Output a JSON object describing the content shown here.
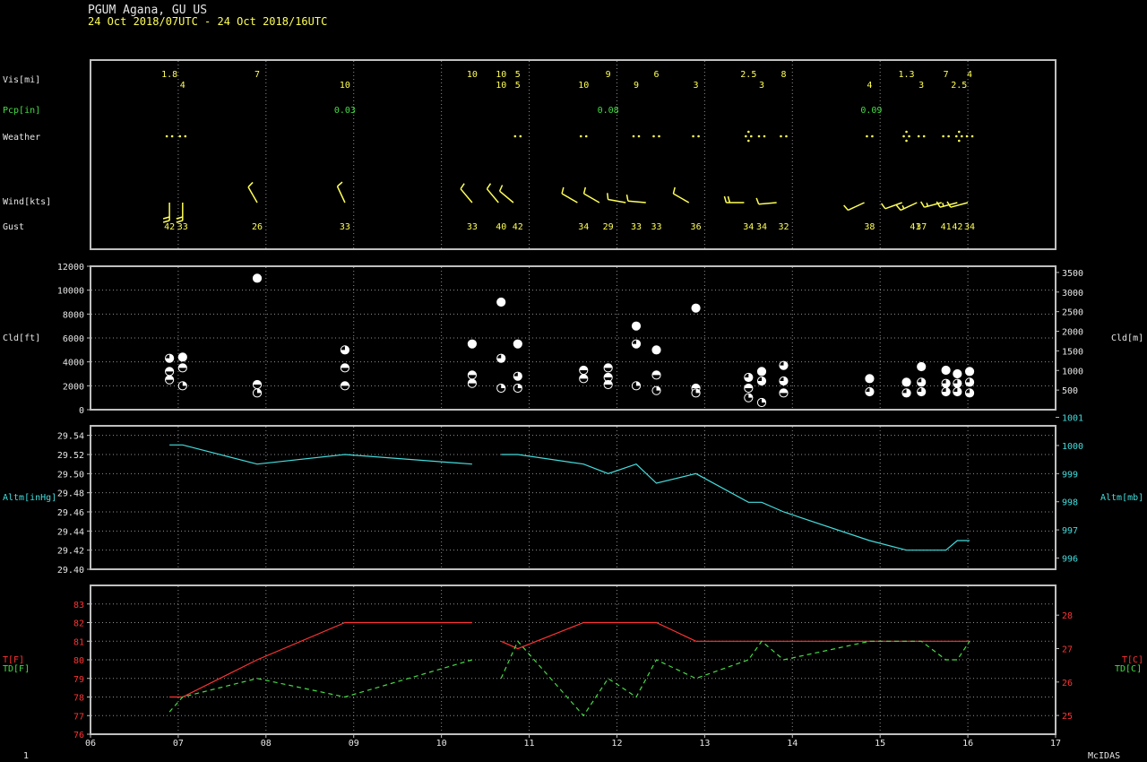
{
  "header": {
    "station_line": "PGUM  Agana, GU US",
    "time_range": "24 Oct 2018/07UTC - 24 Oct 2018/16UTC"
  },
  "footer": {
    "left": "1",
    "right": "McIDAS"
  },
  "colors": {
    "panel_border": "#c0c0c0",
    "grid": "#909090",
    "text_white": "#e6e6e6",
    "yellow": "#ffff55",
    "green": "#44dd44",
    "cyan": "#44dddd",
    "red": "#ff3333"
  },
  "chart_data": [
    {
      "id": "obs_panel",
      "type": "table",
      "rows": {
        "vis": {
          "label": "Vis[mi]"
        },
        "pcp": {
          "label": "Pcp[in]"
        },
        "weather": {
          "label": "Weather"
        },
        "wind": {
          "label": "Wind[kts]"
        },
        "gust": {
          "label": "Gust"
        }
      },
      "vis_top": [
        {
          "t": 6.9,
          "v": "1.8"
        },
        {
          "t": 7.9,
          "v": "7"
        },
        {
          "t": 10.35,
          "v": "10"
        },
        {
          "t": 10.68,
          "v": "10"
        },
        {
          "t": 10.87,
          "v": "5"
        },
        {
          "t": 11.9,
          "v": "9"
        },
        {
          "t": 12.45,
          "v": "6"
        },
        {
          "t": 13.5,
          "v": "2.5"
        },
        {
          "t": 13.9,
          "v": "8"
        },
        {
          "t": 15.3,
          "v": "1.3"
        },
        {
          "t": 15.75,
          "v": "7"
        },
        {
          "t": 16.02,
          "v": "4"
        }
      ],
      "vis_bottom": [
        {
          "t": 7.05,
          "v": "4"
        },
        {
          "t": 8.9,
          "v": "10"
        },
        {
          "t": 10.68,
          "v": "10"
        },
        {
          "t": 10.87,
          "v": "5"
        },
        {
          "t": 11.62,
          "v": "10"
        },
        {
          "t": 12.22,
          "v": "9"
        },
        {
          "t": 12.9,
          "v": "3"
        },
        {
          "t": 13.65,
          "v": "3"
        },
        {
          "t": 14.88,
          "v": "4"
        },
        {
          "t": 15.47,
          "v": "3"
        },
        {
          "t": 15.9,
          "v": "2.5"
        }
      ],
      "precip": [
        {
          "t": 8.9,
          "v": "0.03"
        },
        {
          "t": 11.9,
          "v": "0.08"
        },
        {
          "t": 14.9,
          "v": "0.09"
        }
      ],
      "weather": [
        {
          "t": 6.9,
          "s": "rain"
        },
        {
          "t": 7.05,
          "s": "rain"
        },
        {
          "t": 10.87,
          "s": "rain"
        },
        {
          "t": 11.62,
          "s": "rain"
        },
        {
          "t": 12.22,
          "s": "rain"
        },
        {
          "t": 12.45,
          "s": "rain"
        },
        {
          "t": 12.9,
          "s": "rain"
        },
        {
          "t": 13.5,
          "s": "showers"
        },
        {
          "t": 13.65,
          "s": "rain"
        },
        {
          "t": 13.9,
          "s": "rain"
        },
        {
          "t": 14.88,
          "s": "rain"
        },
        {
          "t": 15.3,
          "s": "showers"
        },
        {
          "t": 15.47,
          "s": "rain"
        },
        {
          "t": 15.75,
          "s": "rain"
        },
        {
          "t": 15.9,
          "s": "showers"
        },
        {
          "t": 16.02,
          "s": "rain"
        }
      ],
      "wind": [
        {
          "t": 6.9,
          "dir": 180,
          "spd": 20
        },
        {
          "t": 7.05,
          "dir": 180,
          "spd": 20
        },
        {
          "t": 7.9,
          "dir": 330,
          "spd": 10
        },
        {
          "t": 8.9,
          "dir": 335,
          "spd": 10
        },
        {
          "t": 10.35,
          "dir": 320,
          "spd": 10
        },
        {
          "t": 10.65,
          "dir": 320,
          "spd": 10
        },
        {
          "t": 10.82,
          "dir": 310,
          "spd": 10
        },
        {
          "t": 11.55,
          "dir": 300,
          "spd": 10
        },
        {
          "t": 11.8,
          "dir": 300,
          "spd": 10
        },
        {
          "t": 12.1,
          "dir": 280,
          "spd": 10
        },
        {
          "t": 12.33,
          "dir": 275,
          "spd": 10
        },
        {
          "t": 12.82,
          "dir": 300,
          "spd": 10
        },
        {
          "t": 13.45,
          "dir": 270,
          "spd": 20
        },
        {
          "t": 13.82,
          "dir": 265,
          "spd": 10
        },
        {
          "t": 14.82,
          "dir": 245,
          "spd": 10
        },
        {
          "t": 15.25,
          "dir": 250,
          "spd": 10
        },
        {
          "t": 15.42,
          "dir": 245,
          "spd": 15
        },
        {
          "t": 15.7,
          "dir": 255,
          "spd": 15
        },
        {
          "t": 15.88,
          "dir": 255,
          "spd": 15
        },
        {
          "t": 16.0,
          "dir": 255,
          "spd": 10
        }
      ],
      "gust": [
        {
          "t": 6.9,
          "v": "42"
        },
        {
          "t": 7.05,
          "v": "33"
        },
        {
          "t": 7.9,
          "v": "26"
        },
        {
          "t": 8.9,
          "v": "33"
        },
        {
          "t": 10.35,
          "v": "33"
        },
        {
          "t": 10.68,
          "v": "40"
        },
        {
          "t": 10.87,
          "v": "42"
        },
        {
          "t": 11.62,
          "v": "34"
        },
        {
          "t": 11.9,
          "v": "29"
        },
        {
          "t": 12.22,
          "v": "33"
        },
        {
          "t": 12.45,
          "v": "33"
        },
        {
          "t": 12.9,
          "v": "36"
        },
        {
          "t": 13.5,
          "v": "34"
        },
        {
          "t": 13.65,
          "v": "34"
        },
        {
          "t": 13.9,
          "v": "32"
        },
        {
          "t": 14.88,
          "v": "38"
        },
        {
          "t": 15.4,
          "v": "41"
        },
        {
          "t": 15.47,
          "v": "37"
        },
        {
          "t": 15.75,
          "v": "41"
        },
        {
          "t": 15.88,
          "v": "42"
        },
        {
          "t": 16.02,
          "v": "34"
        }
      ]
    },
    {
      "id": "cloud",
      "type": "scatter",
      "ylabel_left": "Cld[ft]",
      "ylabel_right": "Cld[m]",
      "ylim": [
        0,
        12000
      ],
      "yticks": [
        0,
        2000,
        4000,
        6000,
        8000,
        10000,
        12000
      ],
      "ylim_right": [
        0,
        3658
      ],
      "yticks_right": [
        500,
        1000,
        1500,
        2000,
        2500,
        3000,
        3500
      ],
      "points": [
        {
          "t": 6.9,
          "ft": 4300,
          "cover": "bkn"
        },
        {
          "t": 6.9,
          "ft": 3200,
          "cover": "sct"
        },
        {
          "t": 6.9,
          "ft": 2500,
          "cover": "sct"
        },
        {
          "t": 7.05,
          "ft": 4400,
          "cover": "ovc"
        },
        {
          "t": 7.05,
          "ft": 3500,
          "cover": "sct"
        },
        {
          "t": 7.05,
          "ft": 2000,
          "cover": "few"
        },
        {
          "t": 7.9,
          "ft": 11000,
          "cover": "ovc"
        },
        {
          "t": 7.9,
          "ft": 2100,
          "cover": "sct"
        },
        {
          "t": 7.9,
          "ft": 1400,
          "cover": "few"
        },
        {
          "t": 8.9,
          "ft": 5000,
          "cover": "bkn"
        },
        {
          "t": 8.9,
          "ft": 3500,
          "cover": "sct"
        },
        {
          "t": 8.9,
          "ft": 2000,
          "cover": "sct"
        },
        {
          "t": 10.35,
          "ft": 5500,
          "cover": "ovc"
        },
        {
          "t": 10.35,
          "ft": 2900,
          "cover": "sct"
        },
        {
          "t": 10.35,
          "ft": 2200,
          "cover": "sct"
        },
        {
          "t": 10.68,
          "ft": 9000,
          "cover": "ovc"
        },
        {
          "t": 10.68,
          "ft": 4300,
          "cover": "bkn"
        },
        {
          "t": 10.68,
          "ft": 1800,
          "cover": "few"
        },
        {
          "t": 10.87,
          "ft": 5500,
          "cover": "ovc"
        },
        {
          "t": 10.87,
          "ft": 2800,
          "cover": "bkn"
        },
        {
          "t": 10.87,
          "ft": 1800,
          "cover": "few"
        },
        {
          "t": 11.62,
          "ft": 3300,
          "cover": "sct"
        },
        {
          "t": 11.62,
          "ft": 2600,
          "cover": "sct"
        },
        {
          "t": 11.9,
          "ft": 3500,
          "cover": "sct"
        },
        {
          "t": 11.9,
          "ft": 2700,
          "cover": "sct"
        },
        {
          "t": 11.9,
          "ft": 2100,
          "cover": "sct"
        },
        {
          "t": 12.22,
          "ft": 7000,
          "cover": "ovc"
        },
        {
          "t": 12.22,
          "ft": 5500,
          "cover": "bkn"
        },
        {
          "t": 12.22,
          "ft": 2000,
          "cover": "few"
        },
        {
          "t": 12.45,
          "ft": 5000,
          "cover": "ovc"
        },
        {
          "t": 12.45,
          "ft": 2900,
          "cover": "sct"
        },
        {
          "t": 12.45,
          "ft": 1600,
          "cover": "few"
        },
        {
          "t": 12.9,
          "ft": 8500,
          "cover": "ovc"
        },
        {
          "t": 12.9,
          "ft": 1800,
          "cover": "sct"
        },
        {
          "t": 12.9,
          "ft": 1400,
          "cover": "few"
        },
        {
          "t": 13.5,
          "ft": 2700,
          "cover": "bkn"
        },
        {
          "t": 13.5,
          "ft": 1800,
          "cover": "sct"
        },
        {
          "t": 13.5,
          "ft": 1000,
          "cover": "few"
        },
        {
          "t": 13.65,
          "ft": 3200,
          "cover": "ovc"
        },
        {
          "t": 13.65,
          "ft": 2400,
          "cover": "bkn"
        },
        {
          "t": 13.65,
          "ft": 600,
          "cover": "few"
        },
        {
          "t": 13.9,
          "ft": 3700,
          "cover": "bkn"
        },
        {
          "t": 13.9,
          "ft": 2400,
          "cover": "bkn"
        },
        {
          "t": 13.9,
          "ft": 1400,
          "cover": "sct"
        },
        {
          "t": 14.88,
          "ft": 2600,
          "cover": "ovc"
        },
        {
          "t": 14.88,
          "ft": 1500,
          "cover": "bkn"
        },
        {
          "t": 15.3,
          "ft": 2300,
          "cover": "ovc"
        },
        {
          "t": 15.3,
          "ft": 1400,
          "cover": "bkn"
        },
        {
          "t": 15.47,
          "ft": 3600,
          "cover": "ovc"
        },
        {
          "t": 15.47,
          "ft": 2300,
          "cover": "bkn"
        },
        {
          "t": 15.47,
          "ft": 1500,
          "cover": "bkn"
        },
        {
          "t": 15.75,
          "ft": 3300,
          "cover": "ovc"
        },
        {
          "t": 15.75,
          "ft": 2200,
          "cover": "bkn"
        },
        {
          "t": 15.75,
          "ft": 1500,
          "cover": "bkn"
        },
        {
          "t": 15.88,
          "ft": 3000,
          "cover": "ovc"
        },
        {
          "t": 15.88,
          "ft": 2200,
          "cover": "bkn"
        },
        {
          "t": 15.88,
          "ft": 1500,
          "cover": "bkn"
        },
        {
          "t": 16.02,
          "ft": 3200,
          "cover": "ovc"
        },
        {
          "t": 16.02,
          "ft": 2300,
          "cover": "bkn"
        },
        {
          "t": 16.02,
          "ft": 1400,
          "cover": "bkn"
        }
      ]
    },
    {
      "id": "altimeter",
      "type": "line",
      "ylabel_left": "Altm[inHg]",
      "ylabel_right": "Altm[mb]",
      "ylim": [
        29.4,
        29.55
      ],
      "yticks": [
        29.4,
        29.42,
        29.44,
        29.46,
        29.48,
        29.5,
        29.52,
        29.54
      ],
      "ylim_right": [
        995.6,
        1000.7
      ],
      "yticks_right": [
        996,
        997,
        998,
        999,
        1000,
        1001
      ],
      "series": [
        {
          "segments": [
            [
              [
                6.9,
                29.53
              ],
              [
                7.05,
                29.53
              ],
              [
                7.9,
                29.51
              ],
              [
                8.9,
                29.52
              ],
              [
                10.35,
                29.51
              ]
            ],
            [
              [
                10.68,
                29.52
              ],
              [
                10.87,
                29.52
              ],
              [
                11.62,
                29.51
              ],
              [
                11.9,
                29.5
              ],
              [
                12.22,
                29.51
              ],
              [
                12.45,
                29.49
              ],
              [
                12.9,
                29.5
              ],
              [
                13.5,
                29.47
              ],
              [
                13.65,
                29.47
              ],
              [
                13.9,
                29.46
              ],
              [
                14.88,
                29.43
              ],
              [
                15.3,
                29.42
              ],
              [
                15.75,
                29.42
              ],
              [
                15.88,
                29.43
              ],
              [
                16.02,
                29.43
              ]
            ]
          ]
        }
      ]
    },
    {
      "id": "temperature",
      "type": "line",
      "ylabel_left_lines": [
        "T[F]",
        "TD[F]"
      ],
      "ylabel_right_lines": [
        "T[C]",
        "TD[C]"
      ],
      "ylim": [
        76,
        84
      ],
      "yticks": [
        76,
        77,
        78,
        79,
        80,
        81,
        82,
        83
      ],
      "ylim_right": [
        24.44,
        28.89
      ],
      "yticks_right": [
        25,
        26,
        27,
        28
      ],
      "xlim": [
        6,
        17
      ],
      "xticks": [
        "06",
        "07",
        "08",
        "09",
        "10",
        "11",
        "12",
        "13",
        "14",
        "15",
        "16",
        "17"
      ],
      "series": [
        {
          "name": "T[F]",
          "color": "#ff3333",
          "dash": false,
          "segments": [
            [
              [
                6.9,
                78
              ],
              [
                7.05,
                78
              ],
              [
                7.9,
                80
              ],
              [
                8.9,
                82
              ],
              [
                10.35,
                82
              ]
            ],
            [
              [
                10.68,
                81
              ],
              [
                10.87,
                80.6
              ],
              [
                11.62,
                82
              ],
              [
                11.9,
                82
              ],
              [
                12.45,
                82
              ],
              [
                12.9,
                81
              ],
              [
                13.5,
                81
              ],
              [
                14.88,
                81
              ],
              [
                15.3,
                81
              ],
              [
                16.02,
                81
              ]
            ]
          ]
        },
        {
          "name": "TD[F]",
          "color": "#44dd44",
          "dash": true,
          "segments": [
            [
              [
                6.9,
                77.2
              ],
              [
                7.05,
                78
              ],
              [
                7.9,
                79
              ],
              [
                8.9,
                78
              ],
              [
                10.35,
                80
              ]
            ],
            [
              [
                10.68,
                79
              ],
              [
                10.87,
                81
              ],
              [
                11.62,
                77
              ],
              [
                11.9,
                79
              ],
              [
                12.22,
                78
              ],
              [
                12.45,
                80
              ],
              [
                12.9,
                79
              ],
              [
                13.5,
                80
              ],
              [
                13.65,
                81
              ],
              [
                13.9,
                80
              ],
              [
                14.88,
                81
              ],
              [
                15.47,
                81
              ],
              [
                15.75,
                80
              ],
              [
                15.88,
                80
              ],
              [
                16.02,
                81
              ]
            ]
          ]
        }
      ]
    }
  ]
}
